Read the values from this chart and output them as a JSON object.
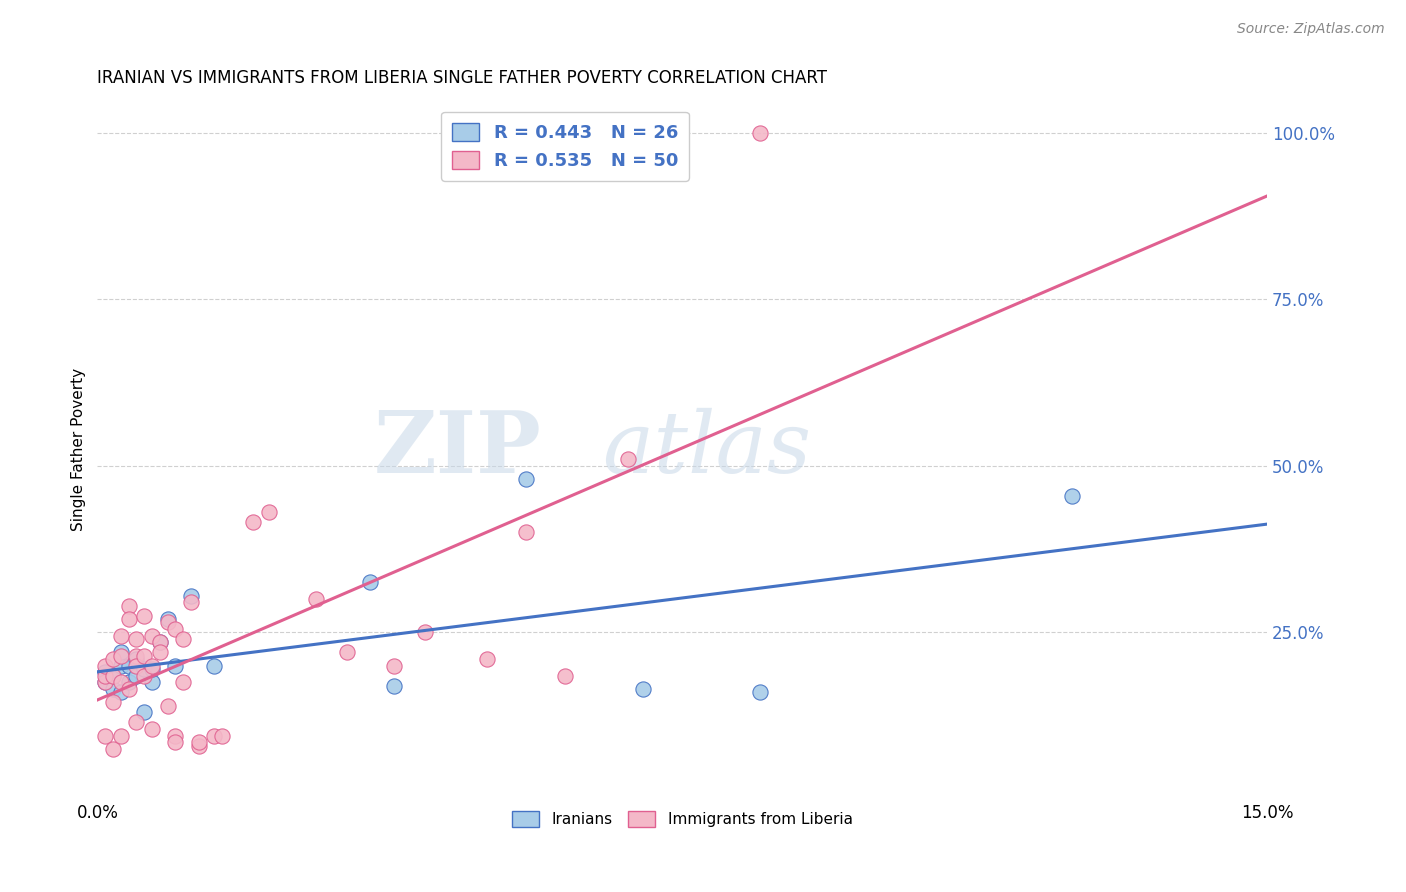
{
  "title": "IRANIAN VS IMMIGRANTS FROM LIBERIA SINGLE FATHER POVERTY CORRELATION CHART",
  "source": "Source: ZipAtlas.com",
  "ylabel": "Single Father Poverty",
  "xlim": [
    0.0,
    0.15
  ],
  "ylim": [
    0.0,
    1.05
  ],
  "xtick_labels": [
    "0.0%",
    "15.0%"
  ],
  "xtick_positions": [
    0.0,
    0.15
  ],
  "ytick_labels": [
    "25.0%",
    "50.0%",
    "75.0%",
    "100.0%"
  ],
  "ytick_positions": [
    0.25,
    0.5,
    0.75,
    1.0
  ],
  "legend_r1": "R = 0.443",
  "legend_n1": "N = 26",
  "legend_r2": "R = 0.535",
  "legend_n2": "N = 50",
  "color_iranian": "#a8cce8",
  "color_liberia": "#f4b8c8",
  "line_color_iranian": "#4472c4",
  "line_color_liberia": "#e06090",
  "watermark_zip": "ZIP",
  "watermark_atlas": "atlas",
  "iranian_x": [
    0.001,
    0.001,
    0.002,
    0.002,
    0.003,
    0.003,
    0.003,
    0.004,
    0.004,
    0.005,
    0.005,
    0.006,
    0.006,
    0.007,
    0.007,
    0.008,
    0.009,
    0.01,
    0.012,
    0.015,
    0.035,
    0.038,
    0.055,
    0.07,
    0.085,
    0.125
  ],
  "iranian_y": [
    0.175,
    0.19,
    0.165,
    0.185,
    0.16,
    0.2,
    0.22,
    0.175,
    0.2,
    0.185,
    0.21,
    0.13,
    0.195,
    0.175,
    0.195,
    0.235,
    0.27,
    0.2,
    0.305,
    0.2,
    0.325,
    0.17,
    0.48,
    0.165,
    0.16,
    0.455
  ],
  "liberia_x": [
    0.001,
    0.001,
    0.001,
    0.001,
    0.002,
    0.002,
    0.002,
    0.002,
    0.003,
    0.003,
    0.003,
    0.003,
    0.004,
    0.004,
    0.004,
    0.005,
    0.005,
    0.005,
    0.005,
    0.006,
    0.006,
    0.006,
    0.007,
    0.007,
    0.007,
    0.008,
    0.008,
    0.009,
    0.009,
    0.01,
    0.01,
    0.01,
    0.011,
    0.011,
    0.012,
    0.013,
    0.013,
    0.015,
    0.016,
    0.02,
    0.022,
    0.028,
    0.032,
    0.038,
    0.042,
    0.05,
    0.055,
    0.06,
    0.068,
    0.085
  ],
  "liberia_y": [
    0.175,
    0.185,
    0.2,
    0.095,
    0.185,
    0.21,
    0.145,
    0.075,
    0.215,
    0.245,
    0.175,
    0.095,
    0.29,
    0.27,
    0.165,
    0.215,
    0.2,
    0.24,
    0.115,
    0.215,
    0.185,
    0.275,
    0.245,
    0.2,
    0.105,
    0.235,
    0.22,
    0.265,
    0.14,
    0.255,
    0.095,
    0.085,
    0.24,
    0.175,
    0.295,
    0.08,
    0.085,
    0.095,
    0.095,
    0.415,
    0.43,
    0.3,
    0.22,
    0.2,
    0.25,
    0.21,
    0.4,
    0.185,
    0.51,
    1.0
  ]
}
